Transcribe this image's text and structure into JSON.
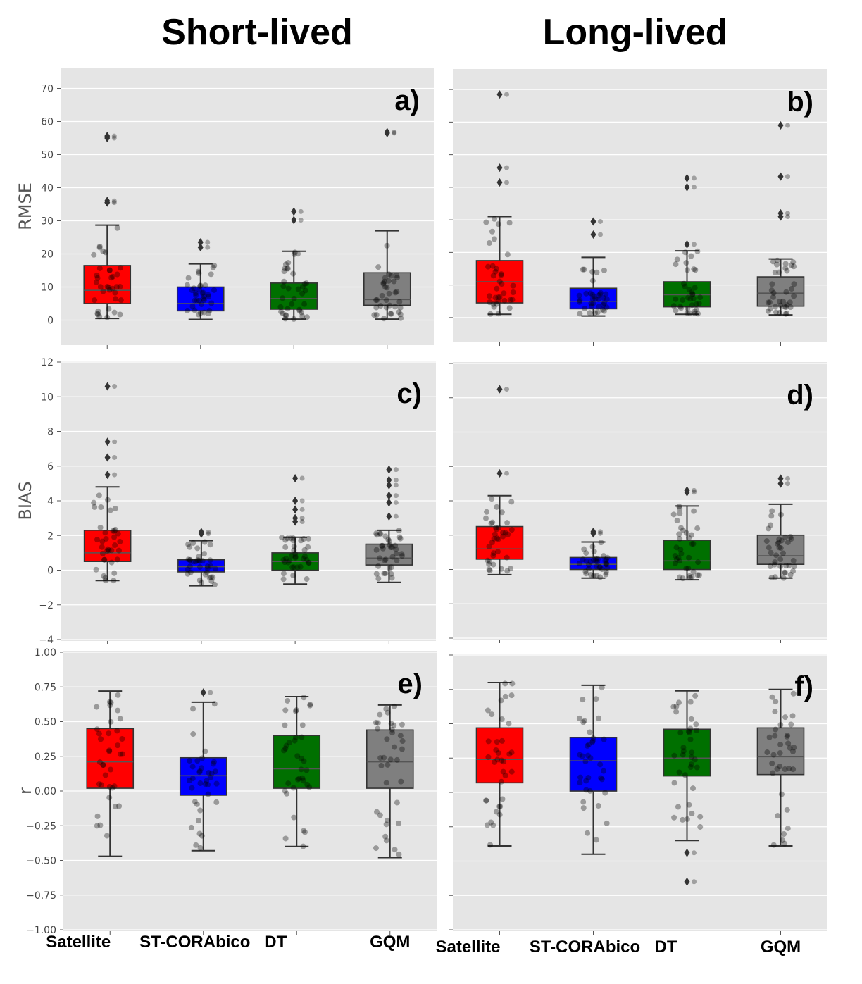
{
  "titles": {
    "left": "Short-lived",
    "right": "Long-lived"
  },
  "categories": [
    "Satellite",
    "ST-CORAbico",
    "DT",
    "GQM"
  ],
  "colors": [
    "#ff0000",
    "#0000ff",
    "#007000",
    "#7f7f7f"
  ],
  "chart_data": [
    {
      "type": "box",
      "panel": "a)",
      "column": "Short-lived",
      "ylabel": "RMSE",
      "ylim": [
        -5,
        75
      ],
      "yticks": [
        "0",
        "10",
        "20",
        "30",
        "40",
        "50",
        "60",
        "70"
      ],
      "boxes": [
        {
          "q1": 5.0,
          "median": 9.0,
          "q3": 16.5,
          "whislo": 0.5,
          "whishi": 28.7,
          "fliers": [
            35.5,
            36.0,
            55.0,
            55.6
          ]
        },
        {
          "q1": 2.8,
          "median": 5.0,
          "q3": 10.0,
          "whislo": 0.2,
          "whishi": 17.0,
          "fliers": [
            22.0,
            23.5
          ]
        },
        {
          "q1": 3.3,
          "median": 6.5,
          "q3": 11.2,
          "whislo": 0.3,
          "whishi": 20.8,
          "fliers": [
            30.2,
            32.8
          ]
        },
        {
          "q1": 4.5,
          "median": 6.2,
          "q3": 14.3,
          "whislo": 0.3,
          "whishi": 27.0,
          "fliers": [
            56.5,
            56.8
          ]
        }
      ]
    },
    {
      "type": "box",
      "panel": "b)",
      "column": "Long-lived",
      "ylabel": "",
      "ylim": [
        -5,
        75
      ],
      "yticks": [
        "",
        "",
        "",
        "",
        "",
        "",
        "",
        ""
      ],
      "boxes": [
        {
          "q1": 4.5,
          "median": 11.0,
          "q3": 17.5,
          "whislo": 1.0,
          "whishi": 31.0,
          "fliers": [
            41.5,
            46.0,
            68.5
          ]
        },
        {
          "q1": 2.7,
          "median": 5.0,
          "q3": 9.0,
          "whislo": 0.5,
          "whishi": 18.5,
          "fliers": [
            25.5,
            29.5
          ]
        },
        {
          "q1": 3.3,
          "median": 7.0,
          "q3": 11.0,
          "whislo": 1.0,
          "whishi": 20.5,
          "fliers": [
            22.5,
            40.0,
            42.8
          ]
        },
        {
          "q1": 3.5,
          "median": 7.5,
          "q3": 12.5,
          "whislo": 0.8,
          "whishi": 18.0,
          "fliers": [
            31.0,
            32.0,
            43.3,
            59.0
          ]
        }
      ]
    },
    {
      "type": "box",
      "panel": "c)",
      "column": "Short-lived",
      "ylabel": "BIAS",
      "ylim": [
        -4,
        12
      ],
      "yticks": [
        "−4",
        "−2",
        "0",
        "2",
        "4",
        "6",
        "8",
        "10",
        "12"
      ],
      "boxes": [
        {
          "q1": 0.5,
          "median": 1.0,
          "q3": 2.3,
          "whislo": -0.6,
          "whishi": 4.8,
          "fliers": [
            5.5,
            6.5,
            7.4,
            10.6
          ]
        },
        {
          "q1": -0.1,
          "median": 0.2,
          "q3": 0.6,
          "whislo": -0.9,
          "whishi": 1.7,
          "fliers": [
            2.1,
            2.2
          ]
        },
        {
          "q1": 0.0,
          "median": 0.5,
          "q3": 1.0,
          "whislo": -0.8,
          "whishi": 1.9,
          "fliers": [
            2.8,
            3.0,
            3.5,
            4.0,
            5.3
          ]
        },
        {
          "q1": 0.3,
          "median": 0.7,
          "q3": 1.5,
          "whislo": -0.7,
          "whishi": 2.3,
          "fliers": [
            3.1,
            3.9,
            4.3,
            4.9,
            5.2,
            5.8
          ]
        }
      ]
    },
    {
      "type": "box",
      "panel": "d)",
      "column": "Long-lived",
      "ylabel": "",
      "ylim": [
        -4,
        12
      ],
      "yticks": [
        "",
        "",
        "",
        "",
        "",
        "",
        "",
        "",
        ""
      ],
      "boxes": [
        {
          "q1": 0.6,
          "median": 1.2,
          "q3": 2.5,
          "whislo": -0.3,
          "whishi": 4.3,
          "fliers": [
            5.6,
            10.5
          ]
        },
        {
          "q1": 0.0,
          "median": 0.3,
          "q3": 0.7,
          "whislo": -0.5,
          "whishi": 1.6,
          "fliers": [
            2.1,
            2.2
          ]
        },
        {
          "q1": 0.0,
          "median": 0.5,
          "q3": 1.7,
          "whislo": -0.6,
          "whishi": 3.7,
          "fliers": [
            4.5,
            4.6
          ]
        },
        {
          "q1": 0.3,
          "median": 0.8,
          "q3": 2.0,
          "whislo": -0.5,
          "whishi": 3.8,
          "fliers": [
            5.0,
            5.3
          ]
        }
      ]
    },
    {
      "type": "box",
      "panel": "e)",
      "column": "Short-lived",
      "ylabel": "r",
      "ylim": [
        -1.0,
        1.0
      ],
      "yticks": [
        "−1.00",
        "−0.75",
        "−0.50",
        "−0.25",
        "0.00",
        "0.25",
        "0.50",
        "0.75",
        "1.00"
      ],
      "boxes": [
        {
          "q1": 0.02,
          "median": 0.21,
          "q3": 0.45,
          "whislo": -0.47,
          "whishi": 0.72,
          "fliers": []
        },
        {
          "q1": -0.03,
          "median": 0.11,
          "q3": 0.24,
          "whislo": -0.43,
          "whishi": 0.64,
          "fliers": [
            0.71
          ]
        },
        {
          "q1": 0.02,
          "median": 0.16,
          "q3": 0.4,
          "whislo": -0.4,
          "whishi": 0.68,
          "fliers": []
        },
        {
          "q1": 0.02,
          "median": 0.21,
          "q3": 0.44,
          "whislo": -0.48,
          "whishi": 0.62,
          "fliers": []
        }
      ]
    },
    {
      "type": "box",
      "panel": "f)",
      "column": "Long-lived",
      "ylabel": "",
      "ylim": [
        -1.0,
        1.0
      ],
      "yticks": [
        "",
        "",
        "",
        "",
        "",
        "",
        "",
        "",
        ""
      ],
      "boxes": [
        {
          "q1": 0.07,
          "median": 0.24,
          "q3": 0.47,
          "whislo": -0.39,
          "whishi": 0.8,
          "fliers": []
        },
        {
          "q1": 0.01,
          "median": 0.23,
          "q3": 0.4,
          "whislo": -0.45,
          "whishi": 0.78,
          "fliers": []
        },
        {
          "q1": 0.12,
          "median": 0.25,
          "q3": 0.46,
          "whislo": -0.35,
          "whishi": 0.74,
          "fliers": [
            -0.44,
            -0.65
          ]
        },
        {
          "q1": 0.13,
          "median": 0.26,
          "q3": 0.47,
          "whislo": -0.39,
          "whishi": 0.75,
          "fliers": []
        }
      ]
    }
  ]
}
